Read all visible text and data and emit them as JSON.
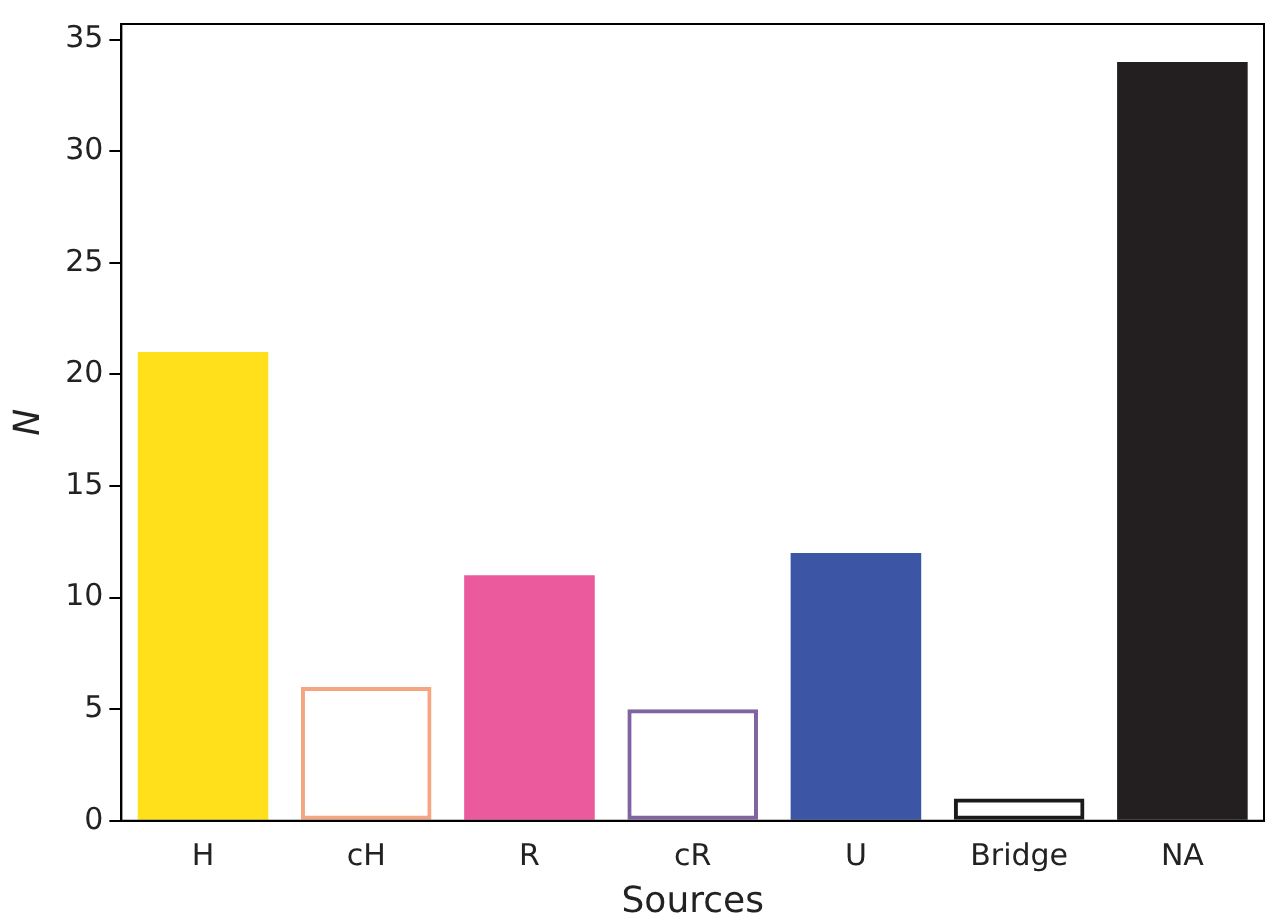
{
  "chart_data": {
    "type": "bar",
    "xlabel": "Sources",
    "ylabel": "N",
    "categories": [
      "H",
      "cH",
      "R",
      "cR",
      "U",
      "Bridge",
      "NA"
    ],
    "stacked": true,
    "series": [
      {
        "type": "bar",
        "values": [
          21,
          null,
          11,
          null,
          12,
          null,
          34
        ],
        "colors": [
          "#ffe01a",
          "#ffffff",
          "#ec5a9e",
          "#ffffff",
          "#3d55a5",
          "#ffffff",
          "#231f20"
        ]
      },
      {
        "type": "bar",
        "values": [
          null,
          6,
          null,
          5,
          null,
          1,
          null
        ],
        "colors": [
          "#ffffff",
          "#f4a582",
          "#ffffff",
          "#8064a2",
          "#ffffff",
          "#1a1a1a",
          "#ffffff"
        ]
      }
    ],
    "ylim": [
      0,
      35.7
    ],
    "yticks": [
      0,
      5,
      10,
      15,
      20,
      25,
      30,
      35
    ],
    "grid": false,
    "legend": false
  }
}
